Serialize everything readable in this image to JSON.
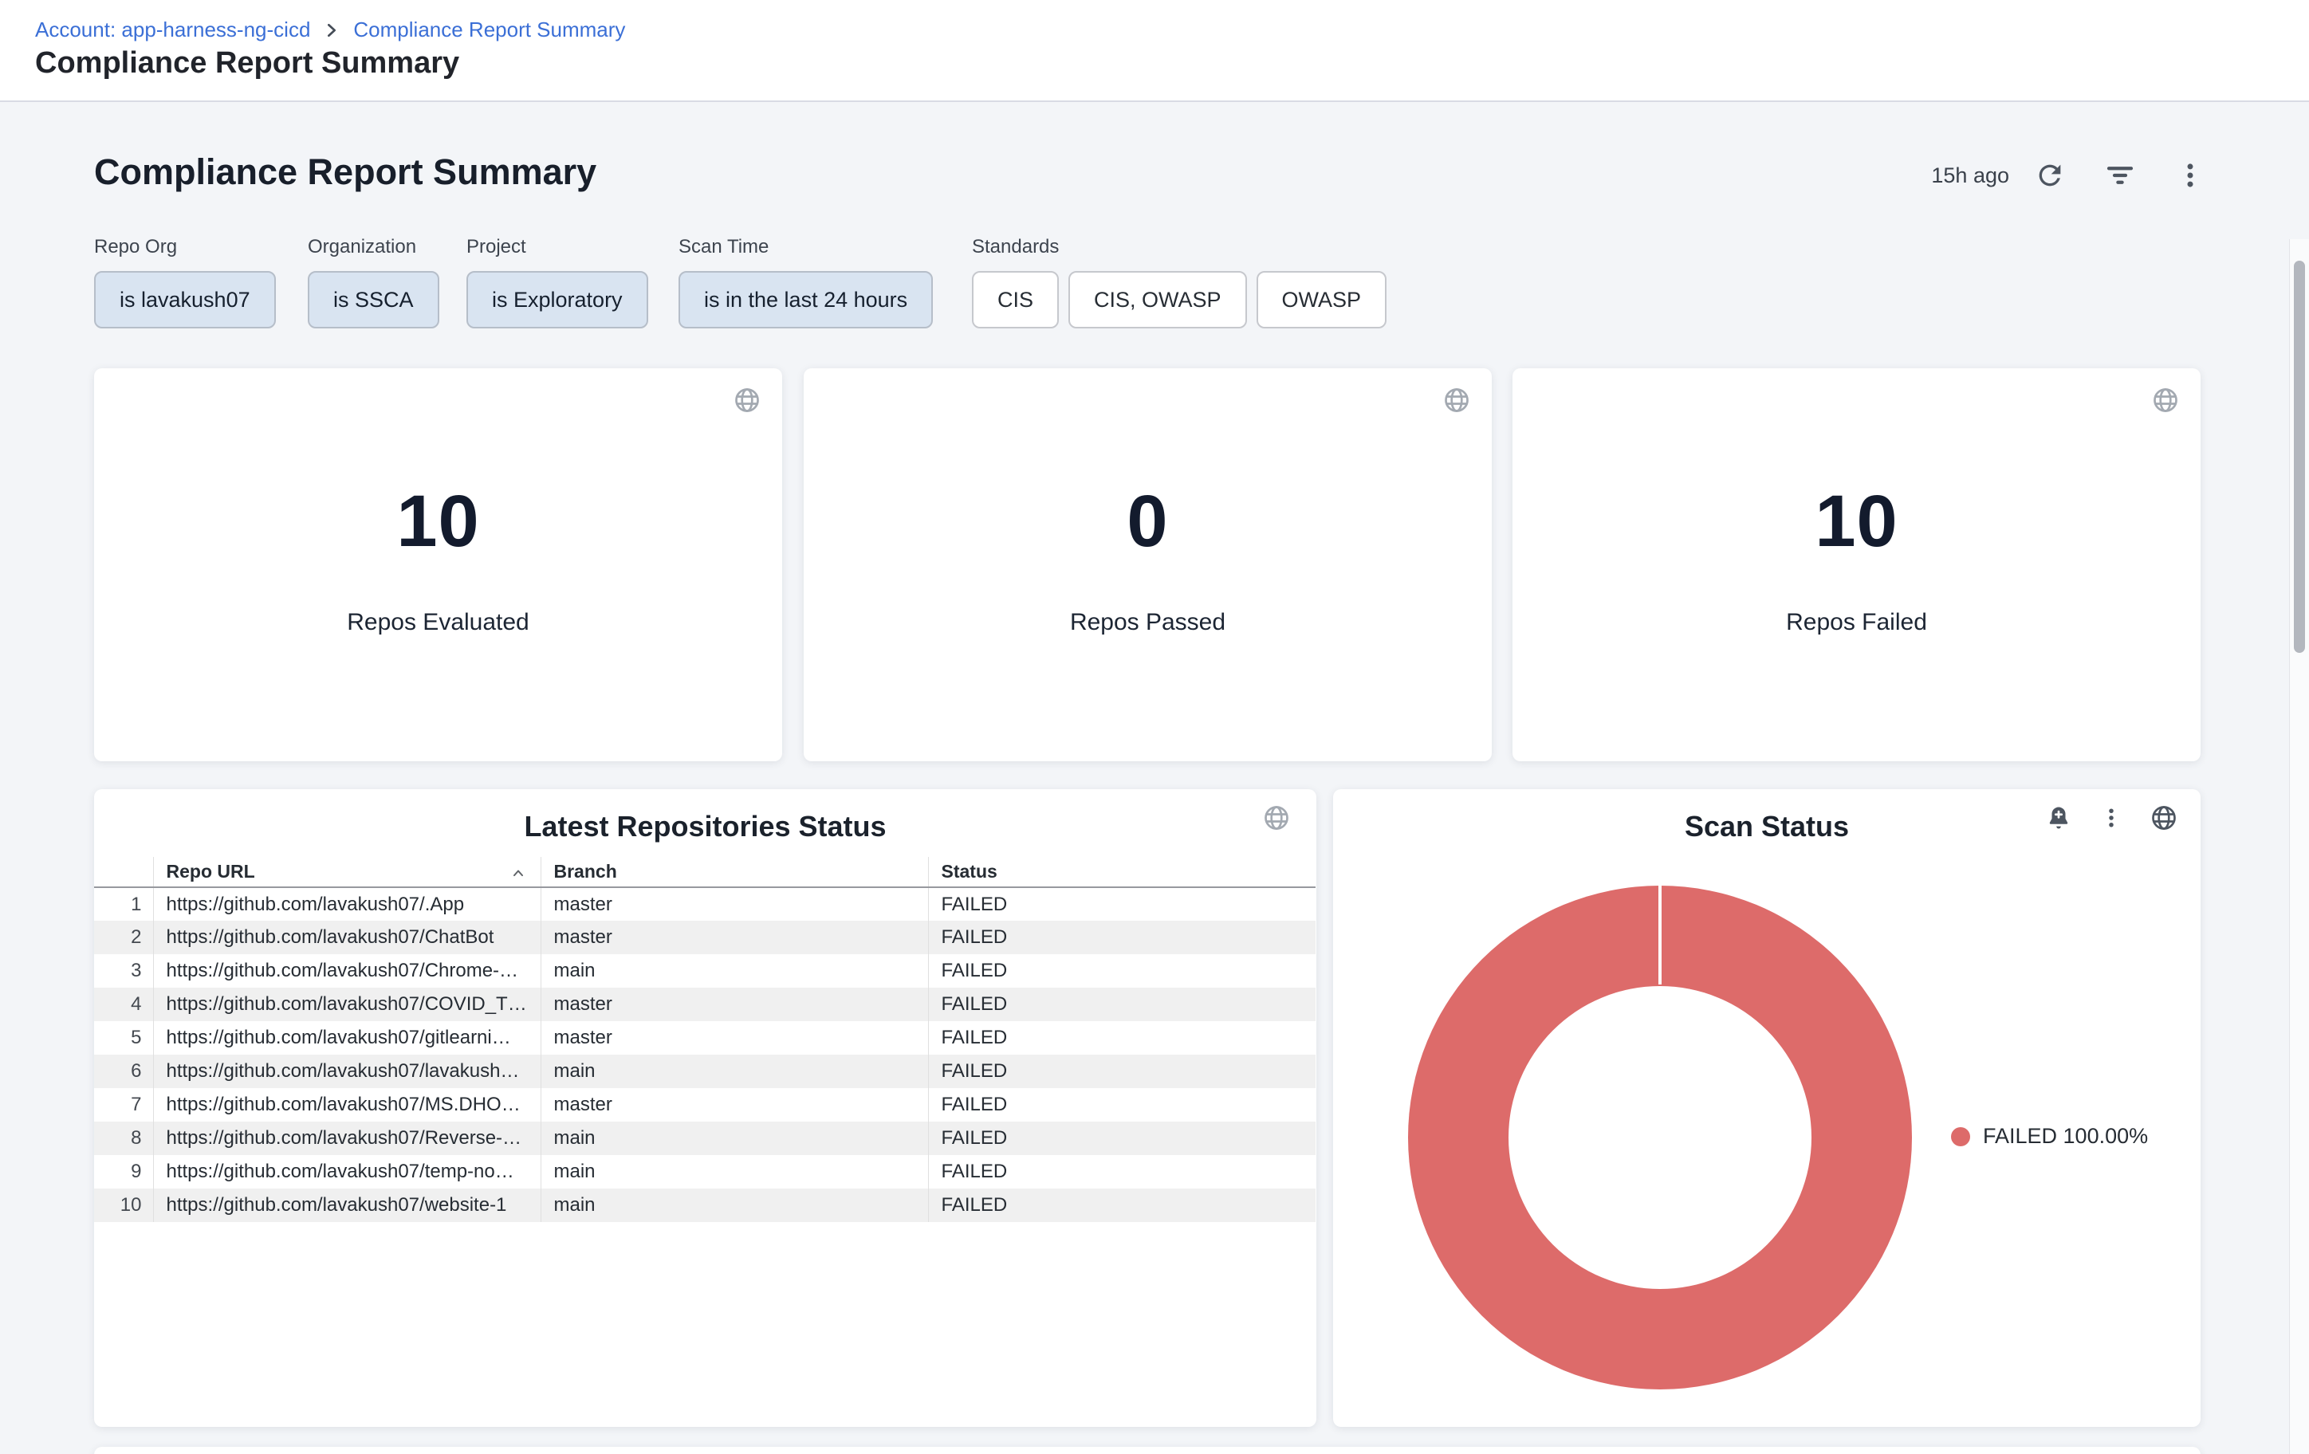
{
  "page": {
    "breadcrumb": {
      "account": "Account: app-harness-ng-cicd",
      "current": "Compliance Report Summary"
    },
    "title": "Compliance Report Summary"
  },
  "dashboard": {
    "title": "Compliance Report Summary",
    "last_refreshed": "15h ago",
    "action_icons": [
      "refresh-icon",
      "filter-icon",
      "kebab-menu-icon"
    ],
    "filters": [
      {
        "label": "Repo Org",
        "chips": [
          {
            "text": "is lavakush07",
            "active": true
          }
        ]
      },
      {
        "label": "Organization",
        "chips": [
          {
            "text": "is SSCA",
            "active": true
          }
        ]
      },
      {
        "label": "Project",
        "chips": [
          {
            "text": "is Exploratory",
            "active": true
          }
        ]
      },
      {
        "label": "Scan Time",
        "chips": [
          {
            "text": "is in the last 24 hours",
            "active": true
          }
        ]
      },
      {
        "label": "Standards",
        "chips": [
          {
            "text": "CIS",
            "active": false
          },
          {
            "text": "CIS, OWASP",
            "active": false
          },
          {
            "text": "OWASP",
            "active": false
          }
        ]
      }
    ],
    "stat_cards": [
      {
        "value": "10",
        "label": "Repos Evaluated",
        "icon": "globe-icon"
      },
      {
        "value": "0",
        "label": "Repos Passed",
        "icon": "globe-icon"
      },
      {
        "value": "10",
        "label": "Repos Failed",
        "icon": "globe-icon"
      }
    ],
    "table": {
      "title": "Latest Repositories Status",
      "icon": "globe-icon",
      "columns": [
        "Repo URL",
        "Branch",
        "Status"
      ],
      "sorted_column": "Repo URL",
      "sort_direction": "asc",
      "rows": [
        {
          "index": "1",
          "repo_url": "https://github.com/lavakush07/.App",
          "branch": "master",
          "status": "FAILED"
        },
        {
          "index": "2",
          "repo_url": "https://github.com/lavakush07/ChatBot",
          "branch": "master",
          "status": "FAILED"
        },
        {
          "index": "3",
          "repo_url": "https://github.com/lavakush07/Chrome-…",
          "branch": "main",
          "status": "FAILED"
        },
        {
          "index": "4",
          "repo_url": "https://github.com/lavakush07/COVID_T…",
          "branch": "master",
          "status": "FAILED"
        },
        {
          "index": "5",
          "repo_url": "https://github.com/lavakush07/gitlearni…",
          "branch": "master",
          "status": "FAILED"
        },
        {
          "index": "6",
          "repo_url": "https://github.com/lavakush07/lavakush…",
          "branch": "main",
          "status": "FAILED"
        },
        {
          "index": "7",
          "repo_url": "https://github.com/lavakush07/MS.DHO…",
          "branch": "master",
          "status": "FAILED"
        },
        {
          "index": "8",
          "repo_url": "https://github.com/lavakush07/Reverse-…",
          "branch": "main",
          "status": "FAILED"
        },
        {
          "index": "9",
          "repo_url": "https://github.com/lavakush07/temp-no…",
          "branch": "main",
          "status": "FAILED"
        },
        {
          "index": "10",
          "repo_url": "https://github.com/lavakush07/website-1",
          "branch": "main",
          "status": "FAILED"
        }
      ]
    },
    "scan_status": {
      "title": "Scan Status",
      "icons": [
        "bell-plus-icon",
        "kebab-menu-icon",
        "globe-icon"
      ],
      "legend_text": "FAILED 100.00%",
      "color": "#dd6b6a"
    }
  },
  "chart_data": [
    {
      "type": "pie",
      "title": "Scan Status",
      "labels": [
        "FAILED"
      ],
      "values": [
        100.0
      ],
      "unit": "%",
      "colors": [
        "#dd6b6a"
      ],
      "donut": true,
      "legend_position": "right",
      "legend_entries": [
        "FAILED 100.00%"
      ]
    },
    {
      "type": "table",
      "title": "Latest Repositories Status",
      "columns": [
        "Repo URL",
        "Branch",
        "Status"
      ],
      "rows": [
        [
          "https://github.com/lavakush07/.App",
          "master",
          "FAILED"
        ],
        [
          "https://github.com/lavakush07/ChatBot",
          "master",
          "FAILED"
        ],
        [
          "https://github.com/lavakush07/Chrome-…",
          "main",
          "FAILED"
        ],
        [
          "https://github.com/lavakush07/COVID_T…",
          "master",
          "FAILED"
        ],
        [
          "https://github.com/lavakush07/gitlearni…",
          "master",
          "FAILED"
        ],
        [
          "https://github.com/lavakush07/lavakush…",
          "main",
          "FAILED"
        ],
        [
          "https://github.com/lavakush07/MS.DHO…",
          "master",
          "FAILED"
        ],
        [
          "https://github.com/lavakush07/Reverse-…",
          "main",
          "FAILED"
        ],
        [
          "https://github.com/lavakush07/temp-no…",
          "main",
          "FAILED"
        ],
        [
          "https://github.com/lavakush07/website-1",
          "main",
          "FAILED"
        ]
      ]
    },
    {
      "type": "single_value",
      "title": "Repos Evaluated",
      "value": 10
    },
    {
      "type": "single_value",
      "title": "Repos Passed",
      "value": 0
    },
    {
      "type": "single_value",
      "title": "Repos Failed",
      "value": 10
    }
  ]
}
